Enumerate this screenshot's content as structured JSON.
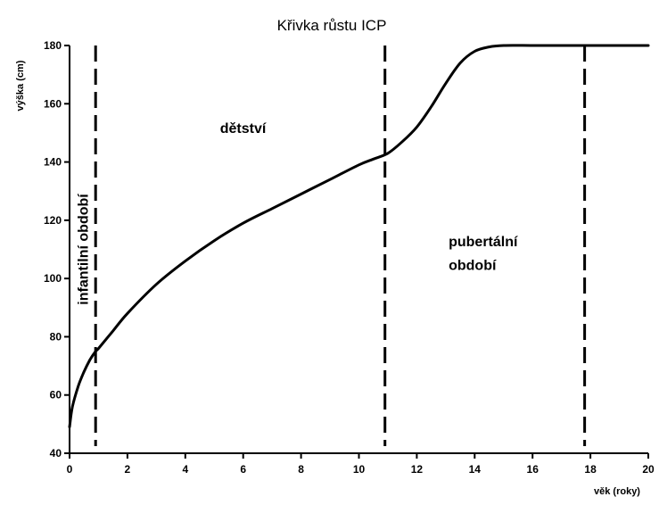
{
  "chart_data": {
    "type": "line",
    "title": "Křivka růstu ICP",
    "xlabel": "věk (roky)",
    "ylabel": "výška (cm)",
    "xlim": [
      0,
      20
    ],
    "ylim": [
      40,
      180
    ],
    "xticks": [
      0,
      2,
      4,
      6,
      8,
      10,
      12,
      14,
      16,
      18,
      20
    ],
    "yticks": [
      40,
      60,
      80,
      100,
      120,
      140,
      160,
      180
    ],
    "grid": false,
    "series": [
      {
        "x": [
          0,
          0.1,
          0.3,
          0.5,
          0.7,
          0.9,
          1.0,
          1.5,
          2,
          3,
          4,
          5,
          6,
          7,
          8,
          9,
          10,
          10.5,
          11,
          11.5,
          12,
          12.5,
          13,
          13.5,
          14,
          14.5,
          15,
          16,
          17,
          18,
          19,
          20
        ],
        "y": [
          49,
          56,
          63,
          68,
          72,
          75,
          76,
          82,
          88,
          98,
          106,
          113,
          119,
          124,
          129,
          134,
          139,
          141,
          143,
          147,
          152,
          159,
          167,
          174,
          178,
          179.5,
          180,
          180,
          180,
          180,
          180,
          180
        ]
      }
    ],
    "vlines": [
      0.9,
      10.9,
      17.8
    ],
    "annotations": [
      {
        "text": "infantilní období",
        "x": 0.45,
        "y": 110,
        "rotate": true
      },
      {
        "text": "dětství",
        "x": 5.2,
        "y": 150
      },
      {
        "text": "pubertální",
        "x": 13.1,
        "y": 111
      },
      {
        "text": "období",
        "x": 13.1,
        "y": 103
      }
    ]
  }
}
